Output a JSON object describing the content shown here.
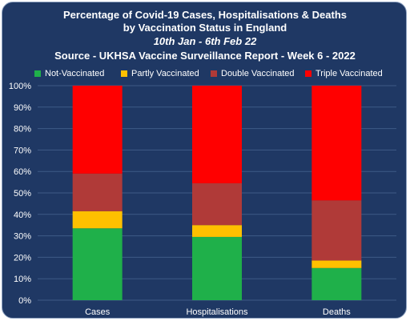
{
  "title": {
    "line1": "Percentage of Covid-19 Cases, Hospitalisations & Deaths",
    "line2": "by Vaccination Status in England",
    "line3": "10th Jan - 6th Feb 22",
    "line4": "Source - UKHSA Vaccine Surveillance Report - Week 6 - 2022"
  },
  "colors": {
    "background": "#1f3864",
    "gridline": "#3f5a86",
    "not_vaccinated": "#1fb04a",
    "partly_vaccinated": "#ffc000",
    "double_vaccinated": "#b03a38",
    "triple_vaccinated": "#ff0000"
  },
  "chart_data": {
    "type": "bar",
    "stacked": true,
    "categories": [
      "Cases",
      "Hospitalisations",
      "Deaths"
    ],
    "series": [
      {
        "name": "Not-Vaccinated",
        "values": [
          33.5,
          29.5,
          15.0
        ]
      },
      {
        "name": "Partly Vaccinated",
        "values": [
          8.0,
          5.5,
          3.5
        ]
      },
      {
        "name": "Double Vaccinated",
        "values": [
          17.5,
          19.5,
          28.0
        ]
      },
      {
        "name": "Triple Vaccinated",
        "values": [
          41.0,
          45.5,
          53.5
        ]
      }
    ],
    "ylim": [
      0,
      100
    ],
    "yticks": [
      "0%",
      "10%",
      "20%",
      "30%",
      "40%",
      "50%",
      "60%",
      "70%",
      "80%",
      "90%",
      "100%"
    ],
    "grid": true,
    "legend_position": "top"
  }
}
